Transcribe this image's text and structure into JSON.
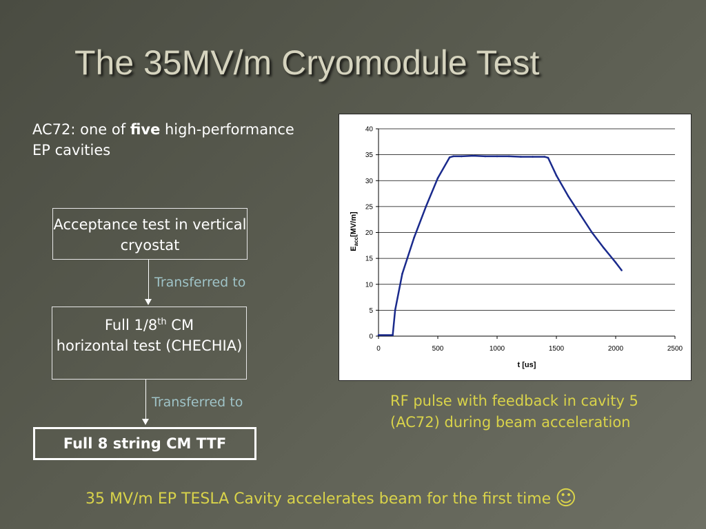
{
  "slide": {
    "title": "The 35MV/m Cryomodule Test",
    "intro": {
      "part1": "AC72: one of ",
      "bold": "five",
      "part2": " high-performance EP cavities"
    },
    "flow": {
      "box1": "Acceptance test in vertical cryostat",
      "arrow1_label": "Transferred to",
      "box2_pre": "Full 1/8",
      "box2_sup": "th",
      "box2_mid": " CM",
      "box2_post": "horizontal test (CHECHIA)",
      "arrow2_label": "Transferred to",
      "box3": "Full 8 string CM TTF"
    },
    "caption": "RF pulse with feedback in cavity 5 (AC72) during beam acceleration",
    "footer": "35 MV/m EP TESLA Cavity accelerates beam for the first time",
    "footer_icon": "smiley-icon"
  },
  "chart_data": {
    "type": "line",
    "xlabel": "t [us]",
    "ylabel_main": "E",
    "ylabel_sub": "acc",
    "ylabel_rest": "[MV/m]",
    "xlim": [
      0,
      2500
    ],
    "ylim": [
      0,
      40
    ],
    "xticks": [
      0,
      500,
      1000,
      1500,
      2000,
      2500
    ],
    "yticks": [
      0,
      5,
      10,
      15,
      20,
      25,
      30,
      35,
      40
    ],
    "grid": "horizontal",
    "series": [
      {
        "color": "#1a2a8c",
        "x": [
          0,
          120,
          140,
          200,
          300,
          400,
          500,
          600,
          630,
          700,
          800,
          900,
          1000,
          1100,
          1200,
          1300,
          1400,
          1430,
          1500,
          1600,
          1700,
          1800,
          1900,
          2000,
          2050
        ],
        "y": [
          0.2,
          0.2,
          5,
          12,
          19,
          25,
          30.5,
          34.5,
          34.7,
          34.7,
          34.8,
          34.7,
          34.7,
          34.7,
          34.6,
          34.6,
          34.6,
          34.4,
          31,
          27,
          23.5,
          20,
          17,
          14.2,
          12.7
        ]
      }
    ]
  }
}
